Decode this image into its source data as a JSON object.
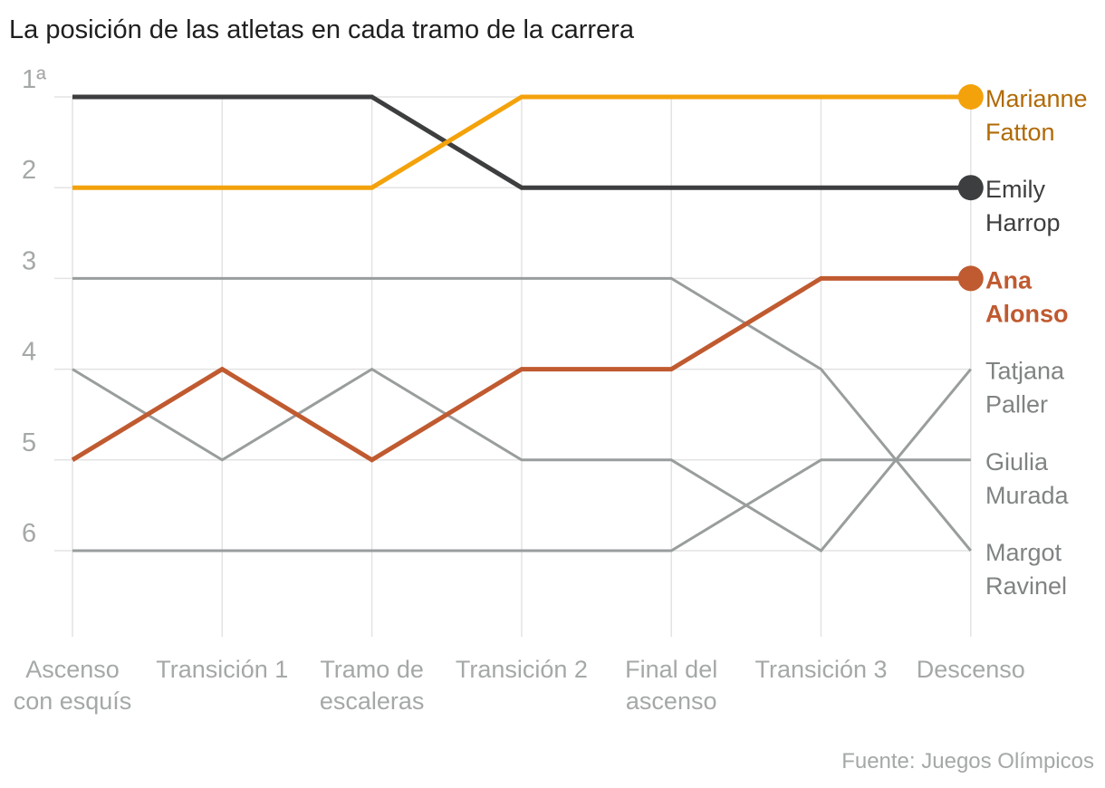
{
  "chart_data": {
    "type": "line",
    "title": "La posición de las atletas en cada tramo de la carrera",
    "source": "Fuente: Juegos Olímpicos",
    "categories": [
      [
        "Ascenso",
        "con esquís"
      ],
      [
        "Transición 1"
      ],
      [
        "Tramo de",
        "escaleras"
      ],
      [
        "Transición 2"
      ],
      [
        "Final del",
        "ascenso"
      ],
      [
        "Transición 3"
      ],
      [
        "Descenso"
      ]
    ],
    "y_ticks": [
      "1ª",
      "2",
      "3",
      "4",
      "5",
      "6"
    ],
    "ylim": [
      1,
      7
    ],
    "grid": true,
    "series": [
      {
        "name": [
          "Tatjana",
          "Paller"
        ],
        "values": [
          4,
          5,
          4,
          5,
          5,
          6,
          4
        ],
        "color": "#9a9d9d",
        "width": 3,
        "dot": false,
        "bold": false
      },
      {
        "name": [
          "Giulia",
          "Murada"
        ],
        "values": [
          6,
          6,
          6,
          6,
          6,
          5,
          5
        ],
        "color": "#9a9d9d",
        "width": 3,
        "dot": false,
        "bold": false
      },
      {
        "name": [
          "Margot",
          "Ravinel"
        ],
        "values": [
          3,
          3,
          3,
          3,
          3,
          4,
          6
        ],
        "color": "#9a9d9d",
        "width": 3,
        "dot": false,
        "bold": false
      },
      {
        "name": [
          "Emily",
          "Harrop"
        ],
        "values": [
          1,
          1,
          1,
          2,
          2,
          2,
          2
        ],
        "color": "#3d3e3f",
        "width": 5,
        "dot": true,
        "bold": false,
        "label_color": "#3d3e3f"
      },
      {
        "name": [
          "Marianne",
          "Fatton"
        ],
        "values": [
          2,
          2,
          2,
          1,
          1,
          1,
          1
        ],
        "color": "#f4a20b",
        "width": 5,
        "dot": true,
        "bold": false,
        "label_color": "#b06a06"
      },
      {
        "name": [
          "Ana",
          "Alonso"
        ],
        "values": [
          5,
          4,
          5,
          4,
          4,
          3,
          3
        ],
        "color": "#c05a30",
        "width": 5,
        "dot": true,
        "bold": true,
        "label_color": "#c05a30"
      }
    ]
  }
}
